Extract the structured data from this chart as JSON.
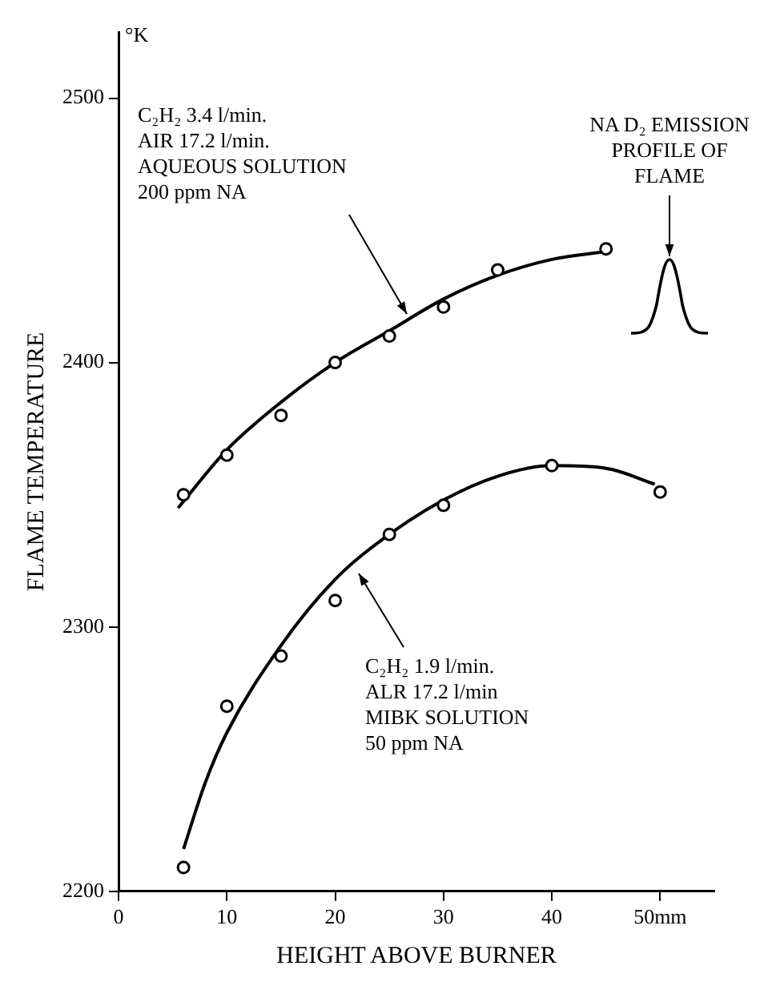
{
  "chart_data": {
    "type": "scatter",
    "xlabel": "HEIGHT ABOVE BURNER",
    "ylabel": "FLAME TEMPERATURE",
    "xlim": [
      0,
      55
    ],
    "xticks": [
      0,
      10,
      20,
      30,
      40,
      {
        "value": 50,
        "label": "50mm"
      }
    ],
    "ylim": [
      2200,
      2525
    ],
    "yticks": [
      2200,
      2300,
      2400,
      2500
    ],
    "grid": false,
    "legend": false,
    "marker": "circle",
    "series": [
      {
        "type": "scatter",
        "color": "#000000",
        "x": [
          6,
          10,
          15,
          20,
          25,
          30,
          35,
          45
        ],
        "values": [
          2350,
          2365,
          2380,
          2400,
          2410,
          2421,
          2435,
          2443
        ]
      },
      {
        "type": "scatter",
        "color": "#000000",
        "x": [
          6,
          10,
          15,
          20,
          25,
          30,
          40,
          50
        ],
        "values": [
          2209,
          2270,
          2289,
          2310,
          2335,
          2346,
          2361,
          2351
        ]
      },
      {
        "type": "line",
        "color": "#000000",
        "marker": "none",
        "x": [
          5.5,
          10,
          15,
          20,
          25,
          30,
          35,
          40,
          45
        ],
        "values": [
          2345,
          2367,
          2385,
          2400,
          2412,
          2424,
          2433,
          2439,
          2442
        ]
      },
      {
        "type": "line",
        "color": "#000000",
        "marker": "none",
        "x": [
          6,
          8,
          10,
          15,
          20,
          25,
          30,
          35,
          40,
          45,
          49.5
        ],
        "values": [
          2216,
          2241,
          2260,
          2293,
          2318,
          2335,
          2348,
          2357,
          2361,
          2360,
          2354
        ]
      }
    ],
    "annotations": [
      "°K",
      "C₂H₂ 3.4 l/min.\nAIR 17.2 l/min.\nAQUEOUS SOLUTION\n200 ppm NA",
      "C₂H₂ 1.9 l/min.\nALR 17.2 l/min\nMIBK SOLUTION\n50 ppm NA",
      "NA D₂ EMISSION\nPROFILE OF\nFLAME"
    ]
  }
}
